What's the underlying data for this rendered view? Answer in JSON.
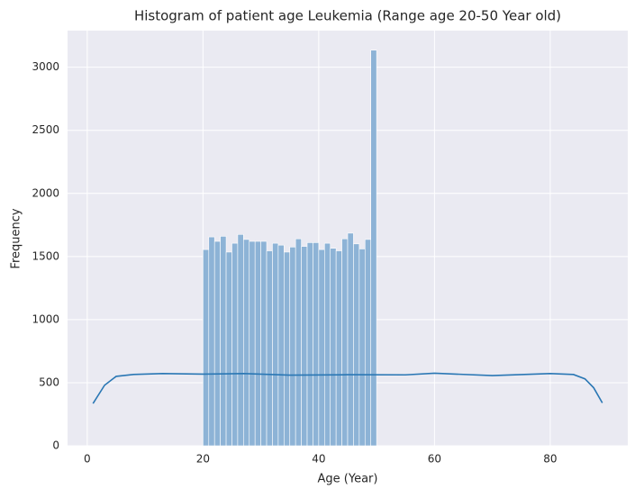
{
  "chart_data": {
    "type": "histogram",
    "title": "Histogram of patient age Leukemia (Range age 20-50 Year old)",
    "xlabel": "Age (Year)",
    "ylabel": "Frequency",
    "bins": [
      20,
      21,
      22,
      23,
      24,
      25,
      26,
      27,
      28,
      29,
      30,
      31,
      32,
      33,
      34,
      35,
      36,
      37,
      38,
      39,
      40,
      41,
      42,
      43,
      44,
      45,
      46,
      47,
      48,
      49,
      50
    ],
    "counts": [
      1555,
      1655,
      1620,
      1660,
      1535,
      1605,
      1675,
      1635,
      1620,
      1620,
      1620,
      1545,
      1605,
      1590,
      1535,
      1575,
      1640,
      1580,
      1610,
      1610,
      1555,
      1605,
      1565,
      1545,
      1640,
      1685,
      1600,
      1560,
      1635,
      3135
    ],
    "color": "#8db3d6",
    "kde": {
      "color": "#2a77b4",
      "x": [
        1,
        3,
        5,
        8,
        13,
        20,
        27,
        35,
        45,
        55,
        60,
        70,
        80,
        84,
        86,
        87.5,
        89
      ],
      "values": [
        335,
        480,
        550,
        565,
        572,
        568,
        572,
        560,
        563,
        562,
        575,
        556,
        572,
        565,
        530,
        460,
        340
      ]
    },
    "xlim": [
      -3.4,
      93.4
    ],
    "ylim": [
      0,
      3290
    ],
    "xticks": [
      0,
      20,
      40,
      60,
      80
    ],
    "yticks": [
      0,
      500,
      1000,
      1500,
      2000,
      2500,
      3000
    ],
    "grid": true
  }
}
